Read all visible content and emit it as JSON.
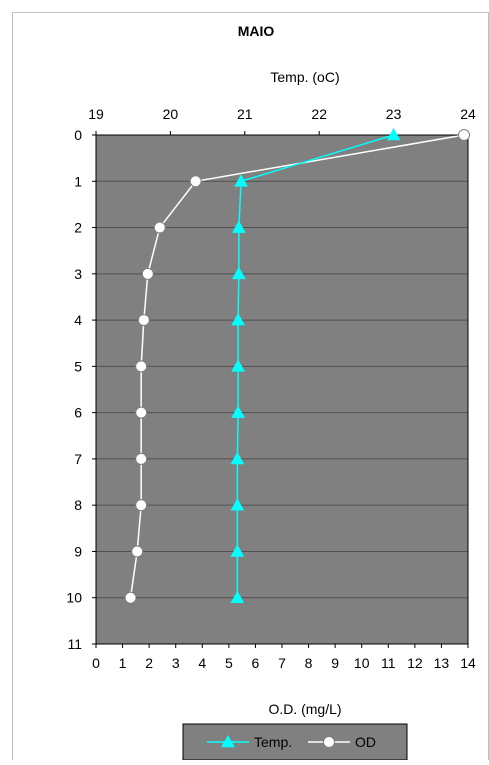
{
  "chart_data": {
    "type": "line",
    "title": "MAIO",
    "x_top_axis": {
      "label": "Temp. (oC)",
      "min": 19,
      "max": 24,
      "ticks": [
        "19",
        "20",
        "21",
        "22",
        "23",
        "24"
      ]
    },
    "x_bottom_axis": {
      "label": "O.D. (mg/L)",
      "min": 0,
      "max": 14,
      "ticks": [
        "0",
        "1",
        "2",
        "3",
        "4",
        "5",
        "6",
        "7",
        "8",
        "9",
        "10",
        "11",
        "12",
        "13",
        "14"
      ]
    },
    "y_axis": {
      "label": "",
      "min": 0,
      "max": 11,
      "inverted": true,
      "ticks": [
        "0",
        "1",
        "2",
        "3",
        "4",
        "5",
        "6",
        "7",
        "8",
        "9",
        "10",
        "11"
      ]
    },
    "grid": "horizontal",
    "legend_position": "bottom",
    "series": [
      {
        "name": "Temp.",
        "axis": "top",
        "color": "#00ffff",
        "marker": "triangle",
        "points": [
          {
            "x": 23.0,
            "y": 0
          },
          {
            "x": 20.95,
            "y": 1
          },
          {
            "x": 20.92,
            "y": 2
          },
          {
            "x": 20.92,
            "y": 3
          },
          {
            "x": 20.91,
            "y": 4
          },
          {
            "x": 20.91,
            "y": 5
          },
          {
            "x": 20.91,
            "y": 6
          },
          {
            "x": 20.9,
            "y": 7
          },
          {
            "x": 20.9,
            "y": 8
          },
          {
            "x": 20.9,
            "y": 9
          },
          {
            "x": 20.9,
            "y": 10
          }
        ]
      },
      {
        "name": "OD",
        "axis": "bottom",
        "color": "#ffffff",
        "marker": "circle",
        "points": [
          {
            "x": 13.85,
            "y": 0
          },
          {
            "x": 3.75,
            "y": 1
          },
          {
            "x": 2.4,
            "y": 2
          },
          {
            "x": 1.95,
            "y": 3
          },
          {
            "x": 1.8,
            "y": 4
          },
          {
            "x": 1.7,
            "y": 5
          },
          {
            "x": 1.7,
            "y": 6
          },
          {
            "x": 1.7,
            "y": 7
          },
          {
            "x": 1.7,
            "y": 8
          },
          {
            "x": 1.55,
            "y": 9
          },
          {
            "x": 1.3,
            "y": 10
          }
        ]
      }
    ]
  },
  "colors": {
    "plot_background": "#808080",
    "grid": "#505050",
    "frame": "#000000",
    "outer_border": "#c0c0c0",
    "legend_background": "#808080"
  }
}
